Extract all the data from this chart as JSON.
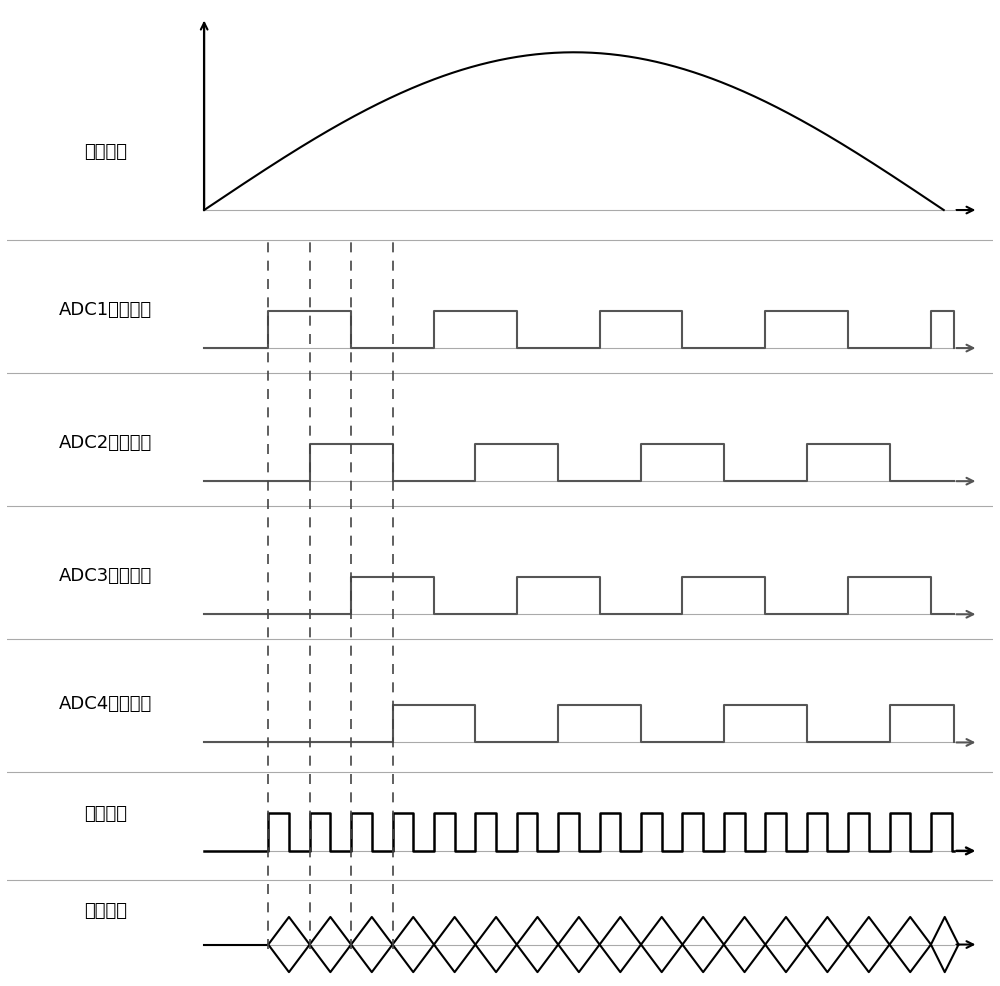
{
  "bg_color": "#ffffff",
  "line_color": "#000000",
  "gray_line_color": "#aaaaaa",
  "labels": [
    "输入信号",
    "ADC1采样时钟",
    "ADC2采样时钟",
    "ADC3采样时钟",
    "ADC4采样时钟",
    "系统时钟",
    "输出信号"
  ],
  "font_size": 13,
  "fig_width": 10.0,
  "fig_height": 9.87,
  "dpi": 100
}
